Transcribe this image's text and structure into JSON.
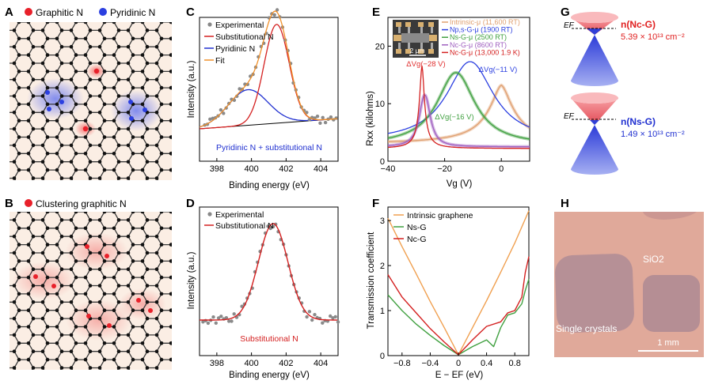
{
  "panels": {
    "A": {
      "letter": "A",
      "legend": [
        "Graphitic N",
        "Pyridinic N"
      ],
      "colors": [
        "#e8202a",
        "#2b3fe0"
      ]
    },
    "B": {
      "letter": "B",
      "legend": [
        "Clustering graphitic N"
      ],
      "colors": [
        "#e8202a"
      ]
    },
    "C": {
      "letter": "C",
      "annotation": "Pyridinic N + substitutional N"
    },
    "D": {
      "letter": "D",
      "annotation": "Substitutional N"
    },
    "E": {
      "letter": "E",
      "scale_bar": "2 μm",
      "annotations": [
        {
          "text": "ΔVg(−28 V)",
          "color": "#e03030"
        },
        {
          "text": "ΔVg(−11 V)",
          "color": "#2b3fe0"
        },
        {
          "text": "ΔVg(−16 V)",
          "color": "#40a040"
        }
      ]
    },
    "F": {
      "letter": "F"
    },
    "G": {
      "letter": "G",
      "top_label": "n(Nc-G)",
      "top_value": "5.39 × 10¹³ cm⁻²",
      "top_color": "#e02020",
      "bottom_label": "n(Ns-G)",
      "bottom_value": "1.49 × 10¹³ cm⁻²",
      "bottom_color": "#2030d0",
      "ef_label": "EF"
    },
    "H": {
      "letter": "H",
      "sio2_label": "SiO2",
      "crystals_label": "Single crystals",
      "scale_bar": "1 mm"
    }
  },
  "chart_data": [
    {
      "id": "C",
      "type": "scatter",
      "xlabel": "Binding energy (eV)",
      "ylabel": "Intensity (a.u.)",
      "xlim": [
        397,
        405
      ],
      "xticks": [
        398,
        400,
        402,
        404
      ],
      "legend": [
        {
          "name": "Experimental",
          "color": "#888888",
          "marker": "dot"
        },
        {
          "name": "Substitutional N",
          "color": "#d42020"
        },
        {
          "name": "Pyridinic N",
          "color": "#2030d0"
        },
        {
          "name": "Fit",
          "color": "#f0902a"
        }
      ]
    },
    {
      "id": "D",
      "type": "scatter",
      "xlabel": "Binding energy (eV)",
      "ylabel": "Intensity (a.u.)",
      "xlim": [
        397,
        405
      ],
      "xticks": [
        398,
        400,
        402,
        404
      ],
      "legend": [
        {
          "name": "Experimental",
          "color": "#888888",
          "marker": "dot"
        },
        {
          "name": "Substitutional N",
          "color": "#d42020"
        }
      ]
    },
    {
      "id": "E",
      "type": "line",
      "xlabel": "Vg (V)",
      "ylabel": "Rxx (kilohms)",
      "xlim": [
        -40,
        10
      ],
      "ylim": [
        0,
        25
      ],
      "xticks": [
        -40,
        -20,
        0
      ],
      "yticks": [
        0,
        10,
        20
      ],
      "series": [
        {
          "name": "Intrinsic-μ (11,600 RT)",
          "color": "#e0a070",
          "peak_x": 0,
          "peak_y": 13.2
        },
        {
          "name": "Np,s-G-μ (1900 RT)",
          "color": "#2b3fe0",
          "peak_x": -11,
          "peak_y": 17.3
        },
        {
          "name": "Ns-G-μ (2500 RT)",
          "color": "#40a040",
          "peak_x": -16,
          "peak_y": 15.4
        },
        {
          "name": "Nc-G-μ (8600 RT)",
          "color": "#a060c0",
          "peak_x": -27,
          "peak_y": 11.5
        },
        {
          "name": "Nc-G-μ (13,000 1.9 K)",
          "color": "#d42020",
          "peak_x": -28,
          "peak_y": 16.6
        }
      ]
    },
    {
      "id": "F",
      "type": "line",
      "xlabel": "E − EF (eV)",
      "ylabel": "Transmission coefficient",
      "xlim": [
        -1,
        1
      ],
      "ylim": [
        0,
        3.3
      ],
      "xticks": [
        -0.8,
        -0.4,
        0.0,
        0.4,
        0.8
      ],
      "yticks": [
        0,
        1,
        2,
        3
      ],
      "series": [
        {
          "name": "Intrinsic graphene",
          "color": "#f0a050",
          "x": [
            -1,
            -0.8,
            -0.6,
            -0.4,
            -0.2,
            0,
            0.2,
            0.4,
            0.6,
            0.8,
            1
          ],
          "y": [
            3.05,
            2.42,
            1.82,
            1.2,
            0.62,
            0.02,
            0.62,
            1.22,
            1.85,
            2.5,
            3.22
          ]
        },
        {
          "name": "Ns-G",
          "color": "#40a040",
          "x": [
            -1,
            -0.8,
            -0.6,
            -0.4,
            -0.2,
            0,
            0.2,
            0.4,
            0.5,
            0.6,
            0.7,
            0.8,
            0.9,
            0.95,
            1
          ],
          "y": [
            1.35,
            1.0,
            0.7,
            0.45,
            0.22,
            0.02,
            0.2,
            0.35,
            0.2,
            0.62,
            0.9,
            0.95,
            1.15,
            1.45,
            1.7
          ]
        },
        {
          "name": "Nc-G",
          "color": "#d42020",
          "x": [
            -1,
            -0.8,
            -0.6,
            -0.4,
            -0.2,
            0,
            0.2,
            0.4,
            0.6,
            0.7,
            0.8,
            0.9,
            0.95,
            1
          ],
          "y": [
            1.8,
            1.3,
            0.95,
            0.6,
            0.3,
            0.02,
            0.35,
            0.65,
            0.75,
            0.95,
            1.0,
            1.3,
            1.85,
            2.2
          ]
        }
      ]
    }
  ]
}
